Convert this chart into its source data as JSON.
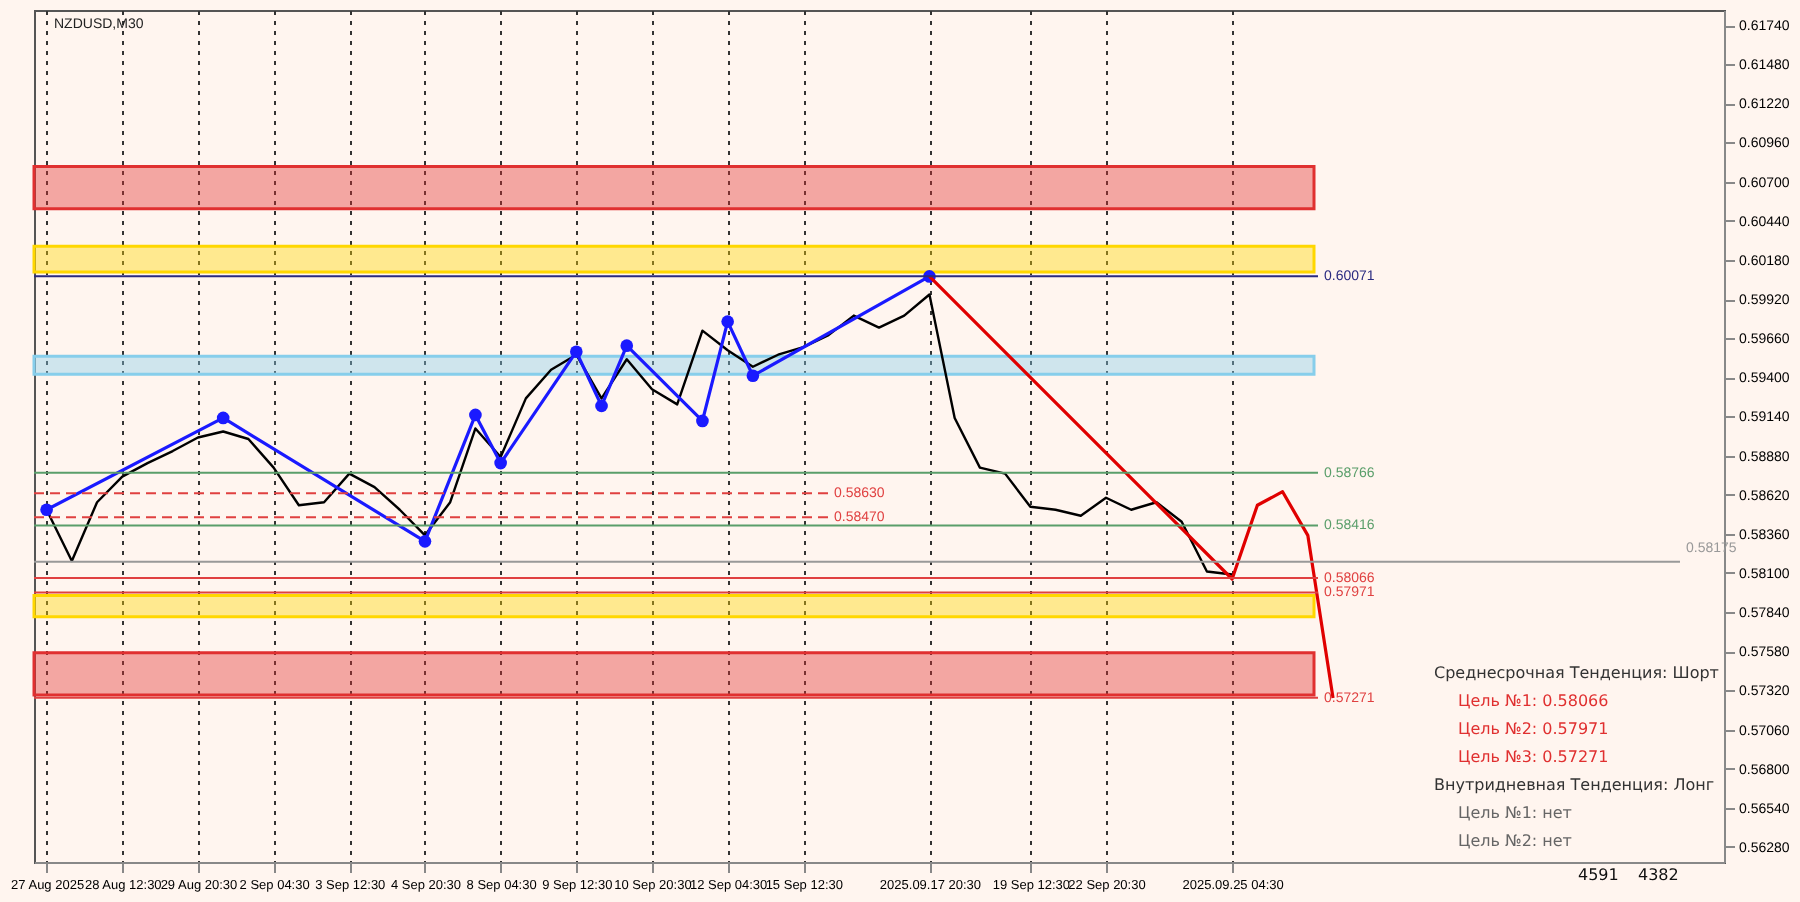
{
  "chart_data": {
    "type": "line",
    "title": "NZDUSD,M30",
    "categories": [
      "27 Aug 2025",
      null,
      null,
      "28 Aug 12:30",
      null,
      null,
      "29 Aug 20:30",
      null,
      null,
      "2 Sep 04:30",
      null,
      null,
      "3 Sep 12:30",
      null,
      null,
      "4 Sep 20:30",
      null,
      null,
      "8 Sep 04:30",
      null,
      null,
      "9 Sep 12:30",
      null,
      null,
      "10 Sep 20:30",
      null,
      null,
      "12 Sep 04:30",
      null,
      null,
      "15 Sep 12:30",
      null,
      null,
      null,
      null,
      "2025.09.17 20:30",
      null,
      null,
      null,
      "19 Sep 12:30",
      null,
      null,
      "22 Sep 20:30",
      null,
      null,
      null,
      null,
      "2025.09.25 04:30",
      null,
      null,
      null,
      null,
      null,
      null,
      null,
      null,
      null,
      null,
      null,
      null,
      null,
      null,
      null,
      null,
      null,
      null,
      null
    ],
    "series": [
      {
        "color": "#000000",
        "values": [
          0.5852,
          0.5818,
          0.5857,
          0.5874,
          0.5883,
          0.5891,
          0.59,
          0.5904,
          0.5899,
          0.588,
          0.5855,
          0.5857,
          0.5876,
          0.5867,
          0.5852,
          0.5835,
          0.5857,
          0.5906,
          0.5887,
          0.5926,
          0.5945,
          0.5955,
          0.5926,
          0.5952,
          0.5932,
          0.5922,
          0.5971,
          0.5958,
          0.5947,
          0.5955,
          0.596,
          0.5968,
          0.5981,
          0.5973,
          0.5981,
          0.5995,
          0.5913,
          0.588,
          0.5876,
          0.5854,
          0.5852,
          0.5848,
          0.586,
          0.5852,
          0.5857,
          0.5844,
          0.5811,
          0.5809,
          null,
          null,
          null,
          null,
          null,
          null,
          null,
          null,
          null,
          null,
          null,
          null,
          null,
          null,
          null,
          null,
          null,
          null,
          null
        ]
      },
      {
        "color": "#1a1aff",
        "marker": "circle",
        "values": [
          0.5852,
          null,
          null,
          null,
          null,
          null,
          null,
          0.5913,
          null,
          null,
          null,
          null,
          null,
          null,
          null,
          0.5831,
          null,
          0.5915,
          0.5883,
          null,
          null,
          0.5957,
          0.5921,
          0.5961,
          null,
          null,
          0.5911,
          0.5977,
          0.5941,
          null,
          null,
          null,
          null,
          null,
          null,
          0.6007,
          null,
          null,
          null,
          null,
          null,
          null,
          null,
          null,
          null,
          null,
          null,
          null,
          null,
          null,
          null,
          null,
          null,
          null,
          null,
          null,
          null,
          null,
          null,
          null,
          null,
          null,
          null,
          null,
          null,
          null,
          null
        ]
      },
      {
        "color": "#e00000",
        "values": [
          null,
          null,
          null,
          null,
          null,
          null,
          null,
          null,
          null,
          null,
          null,
          null,
          null,
          null,
          null,
          null,
          null,
          null,
          null,
          null,
          null,
          null,
          null,
          null,
          null,
          null,
          null,
          null,
          null,
          null,
          null,
          null,
          null,
          null,
          null,
          0.6007,
          null,
          null,
          null,
          null,
          null,
          null,
          null,
          null,
          null,
          null,
          null,
          0.5806,
          0.5855,
          0.5864,
          0.5835,
          0.5727,
          null,
          null,
          null,
          null,
          null,
          null,
          null,
          null,
          null,
          null,
          null,
          null,
          null,
          null,
          null
        ]
      }
    ],
    "ylim": [
      0.5618,
      0.6184
    ],
    "yticks": [
      {
        "value": 0.5628,
        "label": "0.56280"
      },
      {
        "value": 0.5654,
        "label": "0.56540"
      },
      {
        "value": 0.568,
        "label": "0.56800"
      },
      {
        "value": 0.5706,
        "label": "0.57060"
      },
      {
        "value": 0.5732,
        "label": "0.57320"
      },
      {
        "value": 0.5758,
        "label": "0.57580"
      },
      {
        "value": 0.5784,
        "label": "0.57840"
      },
      {
        "value": 0.581,
        "label": "0.58100"
      },
      {
        "value": 0.5836,
        "label": "0.58360"
      },
      {
        "value": 0.5862,
        "label": "0.58620"
      },
      {
        "value": 0.5888,
        "label": "0.58880"
      },
      {
        "value": 0.5914,
        "label": "0.59140"
      },
      {
        "value": 0.594,
        "label": "0.59400"
      },
      {
        "value": 0.5966,
        "label": "0.59660"
      },
      {
        "value": 0.5992,
        "label": "0.59920"
      },
      {
        "value": 0.6018,
        "label": "0.60180"
      },
      {
        "value": 0.6044,
        "label": "0.60440"
      },
      {
        "value": 0.607,
        "label": "0.60700"
      },
      {
        "value": 0.6096,
        "label": "0.60960"
      },
      {
        "value": 0.6122,
        "label": "0.61220"
      },
      {
        "value": 0.6148,
        "label": "0.61480"
      },
      {
        "value": 0.6174,
        "label": "0.61740"
      }
    ],
    "grid": "x",
    "marker": "none",
    "ref_lines": [
      {
        "axis": "y",
        "value": 0.60071,
        "label": "0.60071",
        "color": "#2a2a80"
      },
      {
        "axis": "y",
        "value": 0.58766,
        "label": "0.58766",
        "color": "#5a9e6a"
      },
      {
        "axis": "y",
        "value": 0.58416,
        "label": "0.58416",
        "color": "#5a9e6a"
      },
      {
        "axis": "y",
        "value": 0.58066,
        "label": "0.58066",
        "color": "#e04040"
      },
      {
        "axis": "y",
        "value": 0.57971,
        "label": "0.57971",
        "color": "#e04040"
      },
      {
        "axis": "y",
        "value": 0.57271,
        "label": "0.57271",
        "color": "#e04040"
      },
      {
        "axis": "y",
        "value": 0.5863,
        "label": "0.58630",
        "color": "#e04040",
        "line_style": "dashed"
      },
      {
        "axis": "y",
        "value": 0.5847,
        "label": "0.58470",
        "color": "#e04040",
        "line_style": "dashed"
      },
      {
        "axis": "y",
        "value": 0.58175,
        "label": "0.58175",
        "color": "#999999"
      }
    ],
    "bands": [
      {
        "axis": "y",
        "from": 0.6052,
        "to": 0.608,
        "color": "#e03030"
      },
      {
        "axis": "y",
        "from": 0.601,
        "to": 0.6027,
        "color": "#ffd700"
      },
      {
        "axis": "y",
        "from": 0.5942,
        "to": 0.5954,
        "color": "#87ceeb"
      },
      {
        "axis": "y",
        "from": 0.5781,
        "to": 0.5795,
        "color": "#ffd700"
      },
      {
        "axis": "y",
        "from": 0.5729,
        "to": 0.5757,
        "color": "#e03030"
      }
    ],
    "annotations": [
      "Среднесрочная Тенденция: Шорт",
      "Цель №1: 0.58066",
      "Цель №2: 0.57971",
      "Цель №3: 0.57271",
      "Внутридневная Тенденция: Лонг",
      "Цель №1: нет",
      "Цель №2: нет",
      "4591",
      "4382"
    ]
  }
}
